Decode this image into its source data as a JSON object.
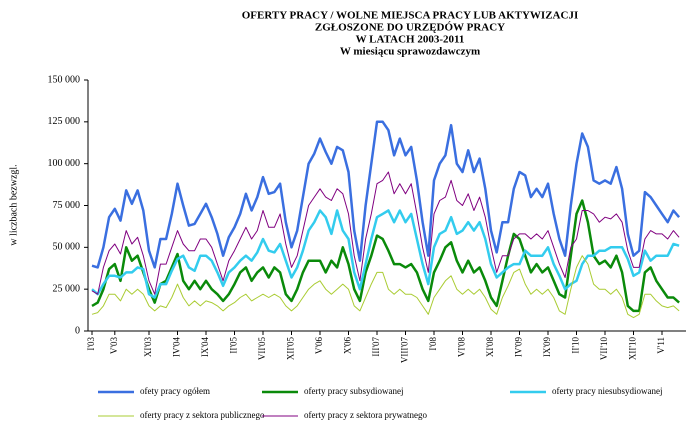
{
  "chart_data": {
    "type": "line",
    "title": [
      "OFERTY PRACY / WOLNE MIEJSCA PRACY LUB AKTYWIZACJI",
      "ZGŁOSZONE DO URZĘDÓW PRACY",
      "W LATACH 2003-2011",
      "W miesiącu sprawozdawczym"
    ],
    "ylabel": "w liczbach bezwzgl.",
    "categories": [
      "I'03",
      null,
      null,
      null,
      "V'03",
      null,
      null,
      null,
      null,
      null,
      "XI'03",
      null,
      null,
      null,
      null,
      "IV'04",
      null,
      null,
      null,
      null,
      "IX'04",
      null,
      null,
      null,
      null,
      "II'05",
      null,
      null,
      null,
      null,
      "VII'05",
      null,
      null,
      null,
      null,
      "XII'05",
      null,
      null,
      null,
      null,
      "V'06",
      null,
      null,
      null,
      null,
      "X'06",
      null,
      null,
      null,
      null,
      "III'07",
      null,
      null,
      null,
      null,
      "VIII'07",
      null,
      null,
      null,
      null,
      "I'08",
      null,
      null,
      null,
      null,
      "VI'08",
      null,
      null,
      null,
      null,
      "XI'08",
      null,
      null,
      null,
      null,
      "IV'09",
      null,
      null,
      null,
      null,
      "IX'09",
      null,
      null,
      null,
      null,
      "II'10",
      null,
      null,
      null,
      null,
      "VII'10",
      null,
      null,
      null,
      null,
      "XII'10",
      null,
      null,
      null,
      null,
      "V'11",
      null,
      null,
      null
    ],
    "ylim": [
      0,
      150000
    ],
    "yticks": [
      0,
      {
        "value": 25000,
        "label": "25 000"
      },
      {
        "value": 50000,
        "label": "50 000"
      },
      {
        "value": 75000,
        "label": "75 000"
      },
      {
        "value": 100000,
        "label": "100 000"
      },
      {
        "value": 125000,
        "label": "125 000"
      },
      {
        "value": 150000,
        "label": "150 000"
      }
    ],
    "series": [
      {
        "name": "ofety pracy ogółem",
        "color": "#3a6fe0",
        "width": 2.5,
        "values": [
          39000,
          38000,
          50000,
          68000,
          73000,
          66000,
          84000,
          76000,
          84000,
          72000,
          48000,
          38000,
          55000,
          55000,
          70000,
          88000,
          75000,
          63000,
          64000,
          70000,
          76000,
          68000,
          58000,
          45000,
          56000,
          62000,
          70000,
          82000,
          72000,
          80000,
          92000,
          82000,
          83000,
          88000,
          65000,
          50000,
          60000,
          80000,
          100000,
          106000,
          115000,
          107000,
          100000,
          110000,
          108000,
          95000,
          60000,
          42000,
          75000,
          100000,
          125000,
          125000,
          120000,
          105000,
          115000,
          105000,
          110000,
          90000,
          65000,
          45000,
          90000,
          100000,
          105000,
          123000,
          100000,
          95000,
          108000,
          95000,
          103000,
          85000,
          60000,
          47000,
          65000,
          65000,
          85000,
          95000,
          93000,
          80000,
          85000,
          80000,
          88000,
          70000,
          55000,
          45000,
          75000,
          100000,
          118000,
          110000,
          90000,
          88000,
          90000,
          88000,
          98000,
          85000,
          58000,
          45000,
          48000,
          83000,
          80000,
          75000,
          70000,
          65000,
          72000,
          68000
        ]
      },
      {
        "name": "oferty pracy subsydiowanej",
        "color": "#0a8a0a",
        "width": 2.5,
        "values": [
          15000,
          17000,
          25000,
          37000,
          40000,
          30000,
          50000,
          42000,
          45000,
          35000,
          25000,
          17000,
          28000,
          30000,
          38000,
          46000,
          30000,
          25000,
          30000,
          25000,
          30000,
          25000,
          22000,
          18000,
          22000,
          28000,
          35000,
          38000,
          30000,
          35000,
          38000,
          32000,
          38000,
          35000,
          22000,
          18000,
          25000,
          35000,
          42000,
          42000,
          42000,
          35000,
          42000,
          38000,
          50000,
          40000,
          25000,
          18000,
          35000,
          45000,
          57000,
          55000,
          48000,
          40000,
          40000,
          38000,
          40000,
          35000,
          25000,
          18000,
          35000,
          42000,
          50000,
          53000,
          42000,
          35000,
          42000,
          35000,
          38000,
          30000,
          20000,
          15000,
          30000,
          45000,
          58000,
          55000,
          45000,
          35000,
          40000,
          35000,
          38000,
          30000,
          22000,
          20000,
          45000,
          70000,
          78000,
          65000,
          45000,
          40000,
          42000,
          38000,
          45000,
          35000,
          15000,
          12000,
          12000,
          35000,
          38000,
          30000,
          25000,
          20000,
          20000,
          17000
        ]
      },
      {
        "name": "oferty pracy niesubsydiowanej",
        "color": "#33ccee",
        "width": 2.5,
        "values": [
          25000,
          22000,
          28000,
          33000,
          33000,
          32000,
          35000,
          35000,
          38000,
          37000,
          22000,
          20000,
          28000,
          28000,
          36000,
          43000,
          45000,
          38000,
          36000,
          45000,
          45000,
          42000,
          35000,
          27000,
          35000,
          38000,
          42000,
          45000,
          42000,
          47000,
          55000,
          48000,
          47000,
          52000,
          42000,
          32000,
          38000,
          48000,
          60000,
          65000,
          72000,
          68000,
          58000,
          72000,
          60000,
          55000,
          35000,
          25000,
          40000,
          55000,
          68000,
          70000,
          72000,
          65000,
          72000,
          65000,
          70000,
          55000,
          40000,
          28000,
          50000,
          58000,
          60000,
          68000,
          58000,
          60000,
          65000,
          60000,
          65000,
          55000,
          40000,
          32000,
          35000,
          38000,
          40000,
          40000,
          48000,
          45000,
          45000,
          45000,
          50000,
          40000,
          33000,
          25000,
          28000,
          30000,
          40000,
          45000,
          45000,
          48000,
          48000,
          50000,
          50000,
          50000,
          43000,
          33000,
          35000,
          48000,
          42000,
          45000,
          45000,
          45000,
          52000,
          51000
        ]
      },
      {
        "name": "oferty pracy z sektora publicznego",
        "color": "#aacc33",
        "width": 1,
        "values": [
          10000,
          11000,
          15000,
          22000,
          22000,
          18000,
          25000,
          22000,
          25000,
          22000,
          15000,
          12000,
          15000,
          14000,
          20000,
          28000,
          20000,
          15000,
          18000,
          15000,
          18000,
          17000,
          15000,
          12000,
          15000,
          17000,
          20000,
          22000,
          18000,
          20000,
          22000,
          20000,
          22000,
          20000,
          15000,
          12000,
          15000,
          20000,
          25000,
          28000,
          30000,
          25000,
          22000,
          25000,
          28000,
          25000,
          15000,
          12000,
          20000,
          28000,
          35000,
          35000,
          25000,
          22000,
          25000,
          22000,
          22000,
          20000,
          15000,
          10000,
          20000,
          25000,
          30000,
          33000,
          25000,
          22000,
          25000,
          22000,
          25000,
          20000,
          13000,
          10000,
          20000,
          27000,
          35000,
          37000,
          28000,
          22000,
          25000,
          22000,
          25000,
          20000,
          12000,
          10000,
          25000,
          38000,
          45000,
          40000,
          28000,
          25000,
          25000,
          22000,
          25000,
          20000,
          10000,
          8000,
          10000,
          22000,
          22000,
          18000,
          15000,
          14000,
          15000,
          12000
        ]
      },
      {
        "name": "oferty pracy z sektora prywatnego",
        "color": "#800080",
        "width": 1,
        "values": [
          24000,
          22000,
          38000,
          48000,
          52000,
          46000,
          60000,
          52000,
          56000,
          45000,
          30000,
          22000,
          40000,
          40000,
          50000,
          60000,
          52000,
          48000,
          48000,
          55000,
          55000,
          50000,
          40000,
          30000,
          42000,
          48000,
          55000,
          62000,
          55000,
          60000,
          72000,
          62000,
          62000,
          70000,
          52000,
          38000,
          45000,
          60000,
          75000,
          80000,
          85000,
          80000,
          78000,
          85000,
          82000,
          70000,
          45000,
          30000,
          55000,
          70000,
          88000,
          90000,
          95000,
          82000,
          88000,
          82000,
          88000,
          70000,
          50000,
          35000,
          70000,
          78000,
          80000,
          90000,
          78000,
          75000,
          82000,
          72000,
          80000,
          68000,
          50000,
          35000,
          45000,
          45000,
          55000,
          58000,
          58000,
          55000,
          58000,
          55000,
          60000,
          50000,
          40000,
          32000,
          50000,
          55000,
          72000,
          72000,
          70000,
          65000,
          68000,
          67000,
          70000,
          65000,
          48000,
          38000,
          38000,
          55000,
          60000,
          58000,
          58000,
          55000,
          60000,
          56000
        ]
      }
    ]
  }
}
